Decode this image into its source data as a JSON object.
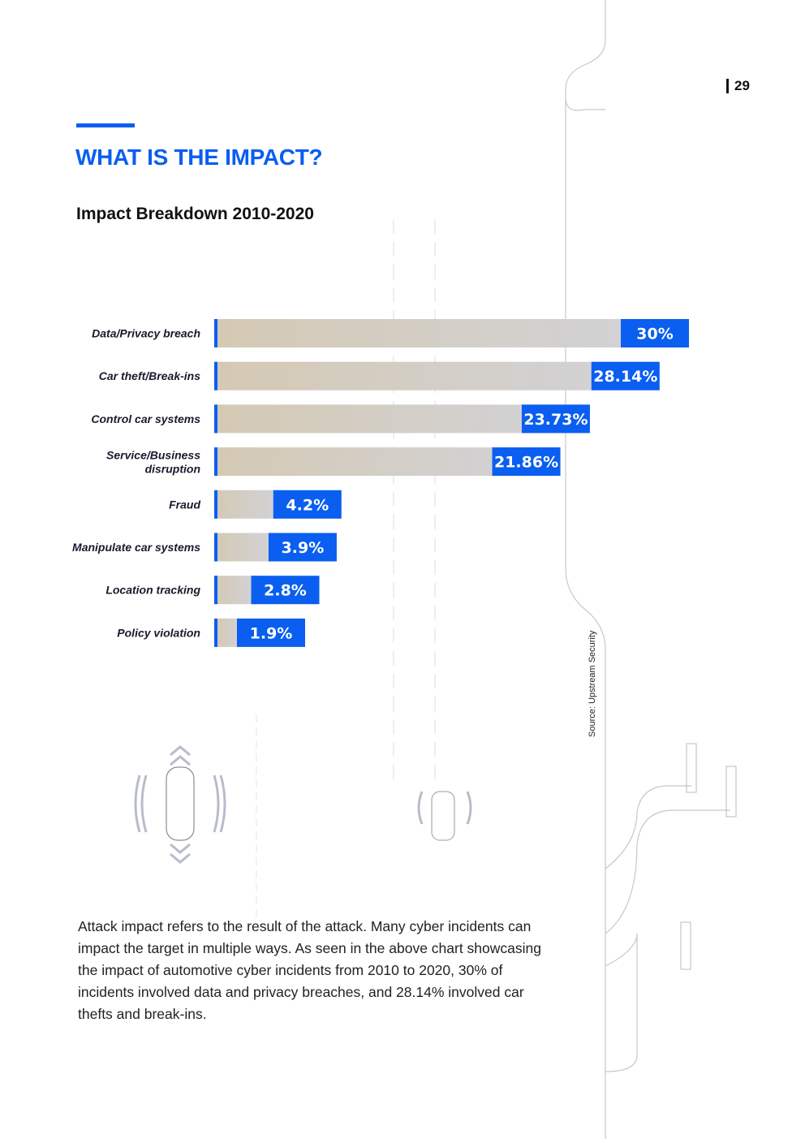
{
  "page_number": "29",
  "heading": "WHAT IS THE IMPACT?",
  "chart_data": {
    "type": "barh",
    "title": "Impact Breakdown 2010-2020",
    "categories": [
      "Data/Privacy breach",
      "Car theft/Break-ins",
      "Control car systems",
      "Service/Business disruption",
      "Fraud",
      "Manipulate car systems",
      "Location tracking",
      "Policy violation"
    ],
    "values": [
      30,
      28.14,
      23.73,
      21.86,
      4.2,
      3.9,
      2.8,
      1.9
    ],
    "value_labels": [
      "30%",
      "28.14%",
      "23.73%",
      "21.86%",
      "4.2%",
      "3.9%",
      "2.8%",
      "1.9%"
    ],
    "color": "#0a5ef0",
    "source": "Source: Upstream Security"
  },
  "body": "Attack impact refers to the result of the attack. Many cyber incidents can impact the target in multiple ways. As seen in the above chart showcasing the impact of automotive cyber incidents from 2010 to 2020, 30% of incidents involved data and privacy breaches, and 28.14% involved car thefts and break-ins."
}
